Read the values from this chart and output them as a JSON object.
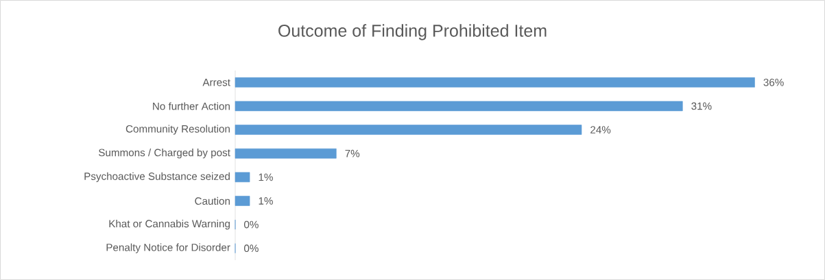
{
  "chart_data": {
    "type": "bar",
    "orientation": "horizontal",
    "title": "Outcome of Finding Prohibited Item",
    "categories": [
      "Arrest",
      "No further Action",
      "Community Resolution",
      "Summons / Charged by post",
      "Psychoactive Substance seized",
      "Caution",
      "Khat or Cannabis Warning",
      "Penalty Notice for Disorder"
    ],
    "values": [
      36,
      31,
      24,
      7,
      1,
      1,
      0,
      0
    ],
    "value_labels": [
      "36%",
      "31%",
      "24%",
      "7%",
      "1%",
      "1%",
      "0%",
      "0%"
    ],
    "color": "#5b9bd5"
  }
}
